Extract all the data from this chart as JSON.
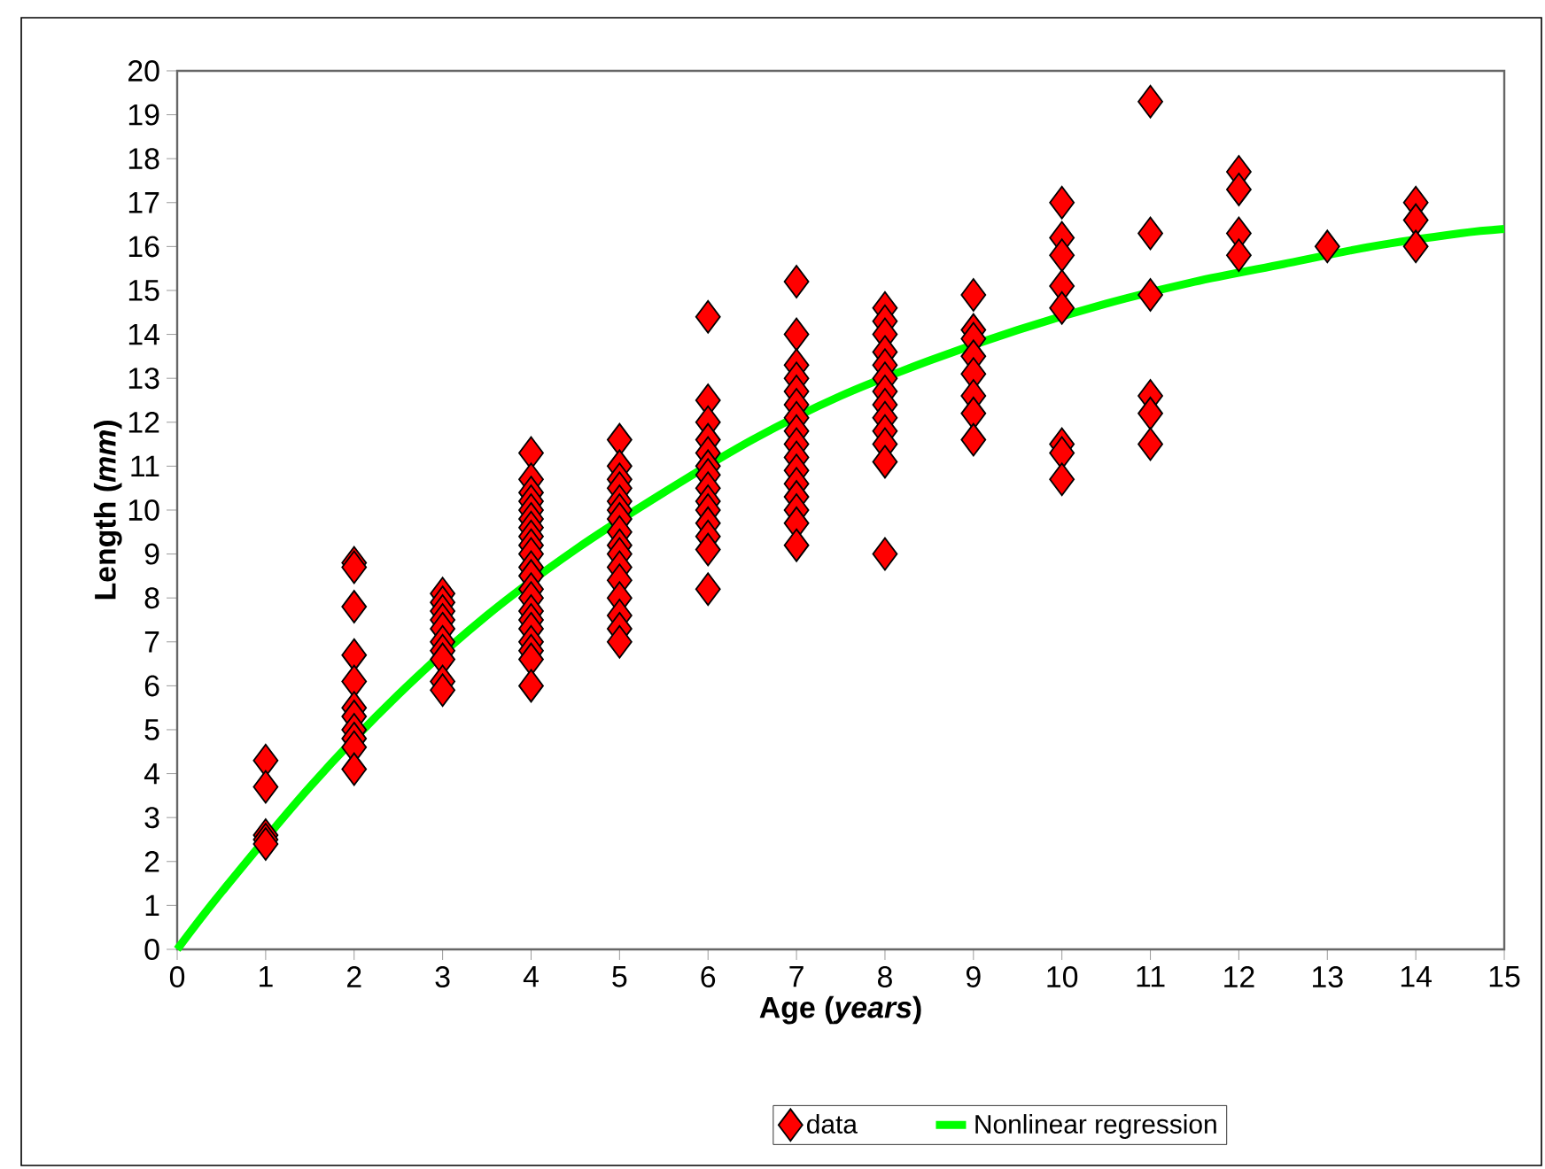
{
  "chart_data": {
    "type": "scatter",
    "xlabel": "**Age (*years*)**",
    "ylabel": "**Length (*mm*)**",
    "xlim": [
      0,
      15
    ],
    "ylim": [
      0,
      20
    ],
    "xticks": [
      0,
      1,
      2,
      3,
      4,
      5,
      6,
      7,
      8,
      9,
      10,
      11,
      12,
      13,
      14,
      15
    ],
    "yticks": [
      0,
      1,
      2,
      3,
      4,
      5,
      6,
      7,
      8,
      9,
      10,
      11,
      12,
      13,
      14,
      15,
      16,
      17,
      18,
      19,
      20
    ],
    "grid": false,
    "legend": "bottom",
    "series": [
      {
        "name": "data",
        "type": "scatter",
        "marker": "diamond",
        "color": "#ff0000",
        "x": [
          1,
          1,
          1,
          1,
          1,
          2,
          2,
          2,
          2,
          2,
          2,
          2,
          2,
          2,
          2,
          2,
          3,
          3,
          3,
          3,
          3,
          3,
          3,
          3,
          3,
          3,
          4,
          4,
          4,
          4,
          4,
          4,
          4,
          4,
          4,
          4,
          4,
          4,
          4,
          4,
          4,
          4,
          4,
          4,
          4,
          4,
          4,
          5,
          5,
          5,
          5,
          5,
          5,
          5,
          5,
          5,
          5,
          5,
          5,
          5,
          5,
          5,
          5,
          6,
          6,
          6,
          6,
          6,
          6,
          6,
          6,
          6,
          6,
          6,
          6,
          6,
          6,
          7,
          7,
          7,
          7,
          7,
          7,
          7,
          7,
          7,
          7,
          7,
          7,
          7,
          7,
          7,
          7,
          8,
          8,
          8,
          8,
          8,
          8,
          8,
          8,
          8,
          8,
          8,
          8,
          8,
          9,
          9,
          9,
          9,
          9,
          9,
          9,
          9,
          10,
          10,
          10,
          10,
          10,
          10,
          10,
          10,
          11,
          11,
          11,
          11,
          11,
          11,
          12,
          12,
          12,
          12,
          13,
          14,
          14,
          14
        ],
        "values": [
          4.3,
          3.7,
          2.6,
          2.5,
          2.4,
          8.8,
          8.7,
          7.8,
          6.7,
          6.1,
          5.5,
          5.3,
          5.0,
          4.8,
          4.6,
          4.1,
          8.1,
          7.9,
          7.7,
          7.5,
          7.3,
          7.0,
          6.8,
          6.6,
          6.1,
          5.9,
          11.3,
          10.7,
          10.4,
          10.2,
          10.0,
          9.8,
          9.6,
          9.4,
          9.2,
          9.0,
          8.7,
          8.5,
          8.2,
          8.0,
          7.7,
          7.5,
          7.3,
          7.0,
          6.8,
          6.6,
          6.0,
          11.6,
          11.0,
          10.7,
          10.5,
          10.2,
          10.0,
          9.8,
          9.5,
          9.2,
          9.0,
          8.7,
          8.4,
          8.0,
          7.6,
          7.3,
          7.0,
          14.4,
          12.5,
          12.0,
          11.6,
          11.3,
          11.0,
          10.8,
          10.5,
          10.2,
          10.0,
          9.7,
          9.4,
          9.1,
          8.2,
          15.2,
          14.0,
          13.3,
          13.0,
          12.7,
          12.4,
          12.1,
          11.8,
          11.5,
          11.2,
          10.9,
          10.6,
          10.3,
          10.0,
          9.7,
          9.2,
          14.6,
          14.3,
          14.0,
          13.6,
          13.3,
          13.0,
          12.7,
          12.4,
          12.1,
          11.8,
          11.5,
          11.1,
          9.0,
          14.9,
          14.1,
          13.9,
          13.5,
          13.1,
          12.6,
          12.2,
          11.6,
          17.0,
          16.2,
          15.8,
          15.1,
          14.6,
          11.5,
          11.3,
          10.7,
          19.3,
          16.3,
          14.9,
          12.6,
          12.2,
          11.5,
          17.7,
          17.3,
          16.3,
          15.8,
          16.0,
          17.0,
          16.6,
          16.0
        ]
      },
      {
        "name": "Nonlinear regression",
        "type": "line",
        "marker": "none",
        "line_style": "solid",
        "color": "#00ff00",
        "x": [
          0,
          0.5,
          1.5,
          2.5,
          3.5,
          4.5,
          5.5,
          6.5,
          7.5,
          8.5,
          9.5,
          10.5,
          11.5,
          12.5,
          13.5,
          14.5,
          15
        ],
        "values": [
          0,
          1.3,
          3.7,
          5.8,
          7.6,
          9.1,
          10.4,
          11.6,
          12.6,
          13.4,
          14.1,
          14.7,
          15.2,
          15.6,
          16.0,
          16.3,
          16.4
        ]
      }
    ]
  }
}
